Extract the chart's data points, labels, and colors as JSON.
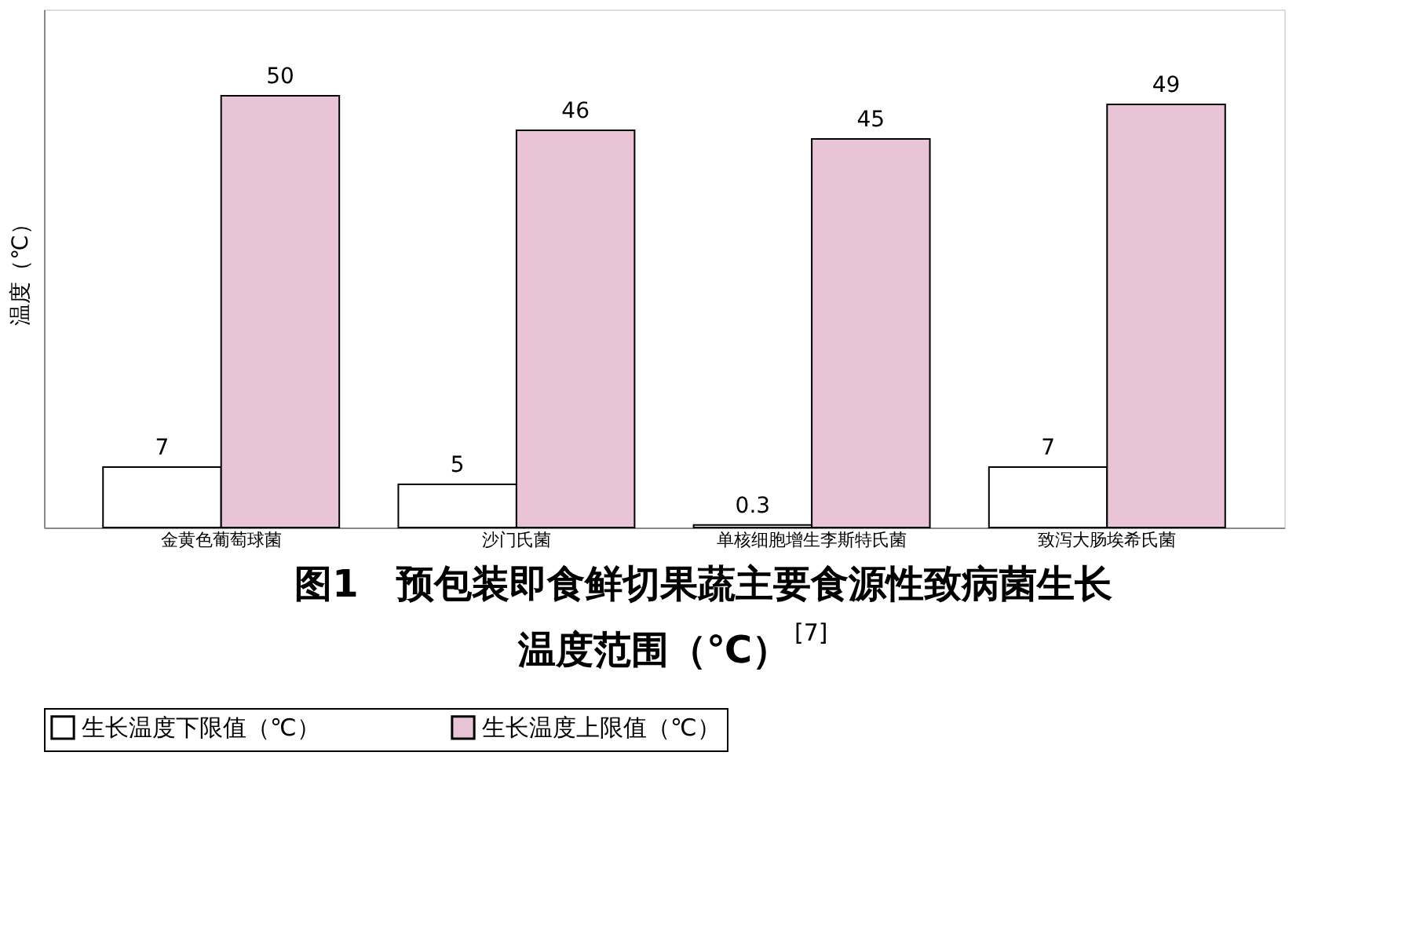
{
  "chart_data": {
    "type": "bar",
    "title": "图1　预包装即食鲜切果蔬主要食源性致病菌生长温度范围（℃）$^{[7]}$",
    "ylabel": "温度（℃）",
    "categories": [
      "金黄色葡萄球菌",
      "沙门氏菌",
      "单核细胞增生李斯特氏菌",
      "致泻大肠埃希氏菌"
    ],
    "series": [
      {
        "name": "生长温度下限值（℃）",
        "color": "#ffffff",
        "values": [
          7,
          5,
          0.3,
          7
        ]
      },
      {
        "name": "生长温度上限值（℃）",
        "color": "#e8c4d6",
        "values": [
          50,
          46,
          45,
          49
        ]
      }
    ],
    "data_labels": true,
    "legend": "bottom",
    "grid": false
  }
}
